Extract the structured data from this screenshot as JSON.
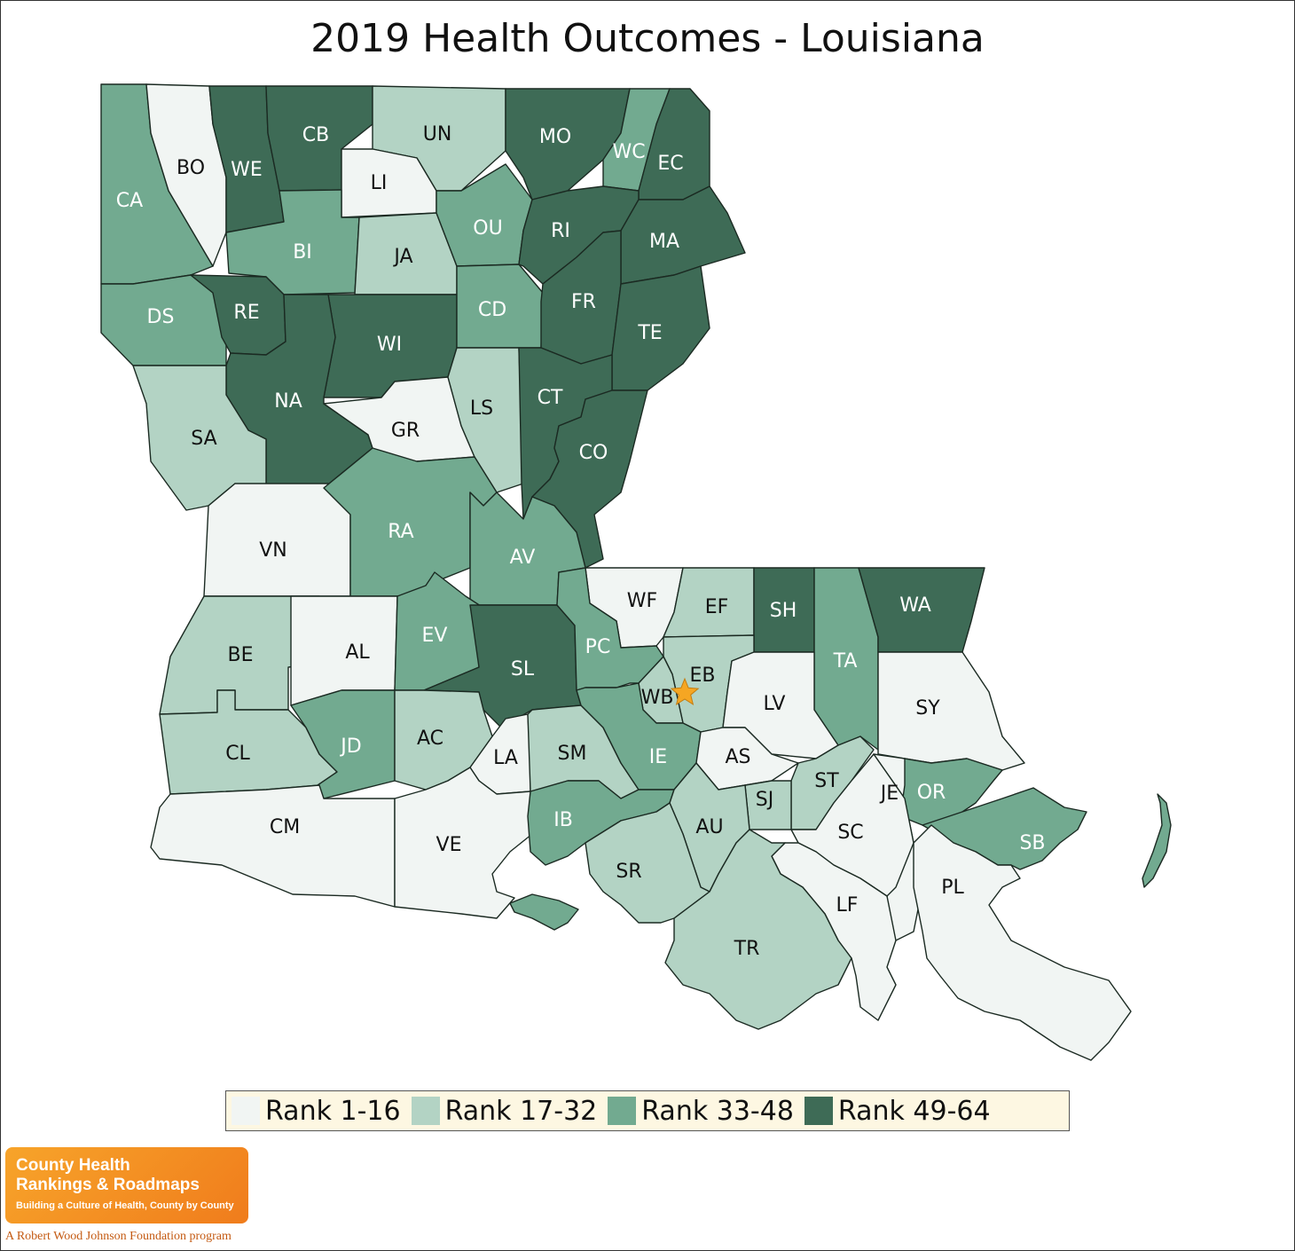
{
  "title": "2019 Health Outcomes - Louisiana",
  "colors": {
    "rank1": "#f1f5f3",
    "rank2": "#b3d3c4",
    "rank3": "#72aa90",
    "rank4": "#3e6b56",
    "star": "#f5a623"
  },
  "legend": [
    {
      "label": "Rank 1-16",
      "color_key": "rank1"
    },
    {
      "label": "Rank 17-32",
      "color_key": "rank2"
    },
    {
      "label": "Rank 33-48",
      "color_key": "rank3"
    },
    {
      "label": "Rank 49-64",
      "color_key": "rank4"
    }
  ],
  "parishes": [
    {
      "abbr": "CA",
      "rank_group": 3
    },
    {
      "abbr": "BO",
      "rank_group": 1
    },
    {
      "abbr": "WE",
      "rank_group": 4
    },
    {
      "abbr": "CB",
      "rank_group": 4
    },
    {
      "abbr": "UN",
      "rank_group": 2
    },
    {
      "abbr": "MO",
      "rank_group": 4
    },
    {
      "abbr": "WC",
      "rank_group": 3
    },
    {
      "abbr": "EC",
      "rank_group": 4
    },
    {
      "abbr": "LI",
      "rank_group": 1
    },
    {
      "abbr": "BI",
      "rank_group": 3
    },
    {
      "abbr": "JA",
      "rank_group": 2
    },
    {
      "abbr": "OU",
      "rank_group": 3
    },
    {
      "abbr": "RI",
      "rank_group": 4
    },
    {
      "abbr": "MA",
      "rank_group": 4
    },
    {
      "abbr": "DS",
      "rank_group": 3
    },
    {
      "abbr": "RE",
      "rank_group": 4
    },
    {
      "abbr": "WI",
      "rank_group": 4
    },
    {
      "abbr": "CD",
      "rank_group": 3
    },
    {
      "abbr": "FR",
      "rank_group": 4
    },
    {
      "abbr": "TE",
      "rank_group": 4
    },
    {
      "abbr": "NA",
      "rank_group": 4
    },
    {
      "abbr": "SA",
      "rank_group": 2
    },
    {
      "abbr": "GR",
      "rank_group": 1
    },
    {
      "abbr": "LS",
      "rank_group": 2
    },
    {
      "abbr": "CT",
      "rank_group": 4
    },
    {
      "abbr": "CO",
      "rank_group": 4
    },
    {
      "abbr": "VN",
      "rank_group": 1
    },
    {
      "abbr": "RA",
      "rank_group": 3
    },
    {
      "abbr": "AV",
      "rank_group": 3
    },
    {
      "abbr": "WF",
      "rank_group": 1
    },
    {
      "abbr": "EF",
      "rank_group": 2
    },
    {
      "abbr": "SH",
      "rank_group": 4
    },
    {
      "abbr": "TA",
      "rank_group": 3
    },
    {
      "abbr": "WA",
      "rank_group": 4
    },
    {
      "abbr": "BE",
      "rank_group": 2
    },
    {
      "abbr": "AL",
      "rank_group": 1
    },
    {
      "abbr": "EV",
      "rank_group": 3
    },
    {
      "abbr": "SL",
      "rank_group": 4
    },
    {
      "abbr": "PC",
      "rank_group": 3
    },
    {
      "abbr": "EB",
      "rank_group": 2
    },
    {
      "abbr": "WB",
      "rank_group": 2
    },
    {
      "abbr": "LV",
      "rank_group": 1
    },
    {
      "abbr": "SY",
      "rank_group": 1
    },
    {
      "abbr": "CL",
      "rank_group": 2
    },
    {
      "abbr": "JD",
      "rank_group": 3
    },
    {
      "abbr": "AC",
      "rank_group": 2
    },
    {
      "abbr": "LA",
      "rank_group": 1
    },
    {
      "abbr": "SM",
      "rank_group": 2
    },
    {
      "abbr": "IE",
      "rank_group": 3
    },
    {
      "abbr": "AS",
      "rank_group": 1
    },
    {
      "abbr": "ST",
      "rank_group": 2
    },
    {
      "abbr": "JE",
      "rank_group": 1
    },
    {
      "abbr": "OR",
      "rank_group": 3
    },
    {
      "abbr": "SB",
      "rank_group": 3
    },
    {
      "abbr": "SJ",
      "rank_group": 2
    },
    {
      "abbr": "CM",
      "rank_group": 1
    },
    {
      "abbr": "VE",
      "rank_group": 1
    },
    {
      "abbr": "IB",
      "rank_group": 3
    },
    {
      "abbr": "AU",
      "rank_group": 2
    },
    {
      "abbr": "SC",
      "rank_group": 1
    },
    {
      "abbr": "SR",
      "rank_group": 2
    },
    {
      "abbr": "LF",
      "rank_group": 1
    },
    {
      "abbr": "PL",
      "rank_group": 1
    },
    {
      "abbr": "TR",
      "rank_group": 2
    }
  ],
  "capital_marker": "star",
  "logo": {
    "line1": "County Health",
    "line2": "Rankings & Roadmaps",
    "tagline": "Building a Culture of Health, County by County",
    "program": "A Robert Wood Johnson Foundation program"
  }
}
